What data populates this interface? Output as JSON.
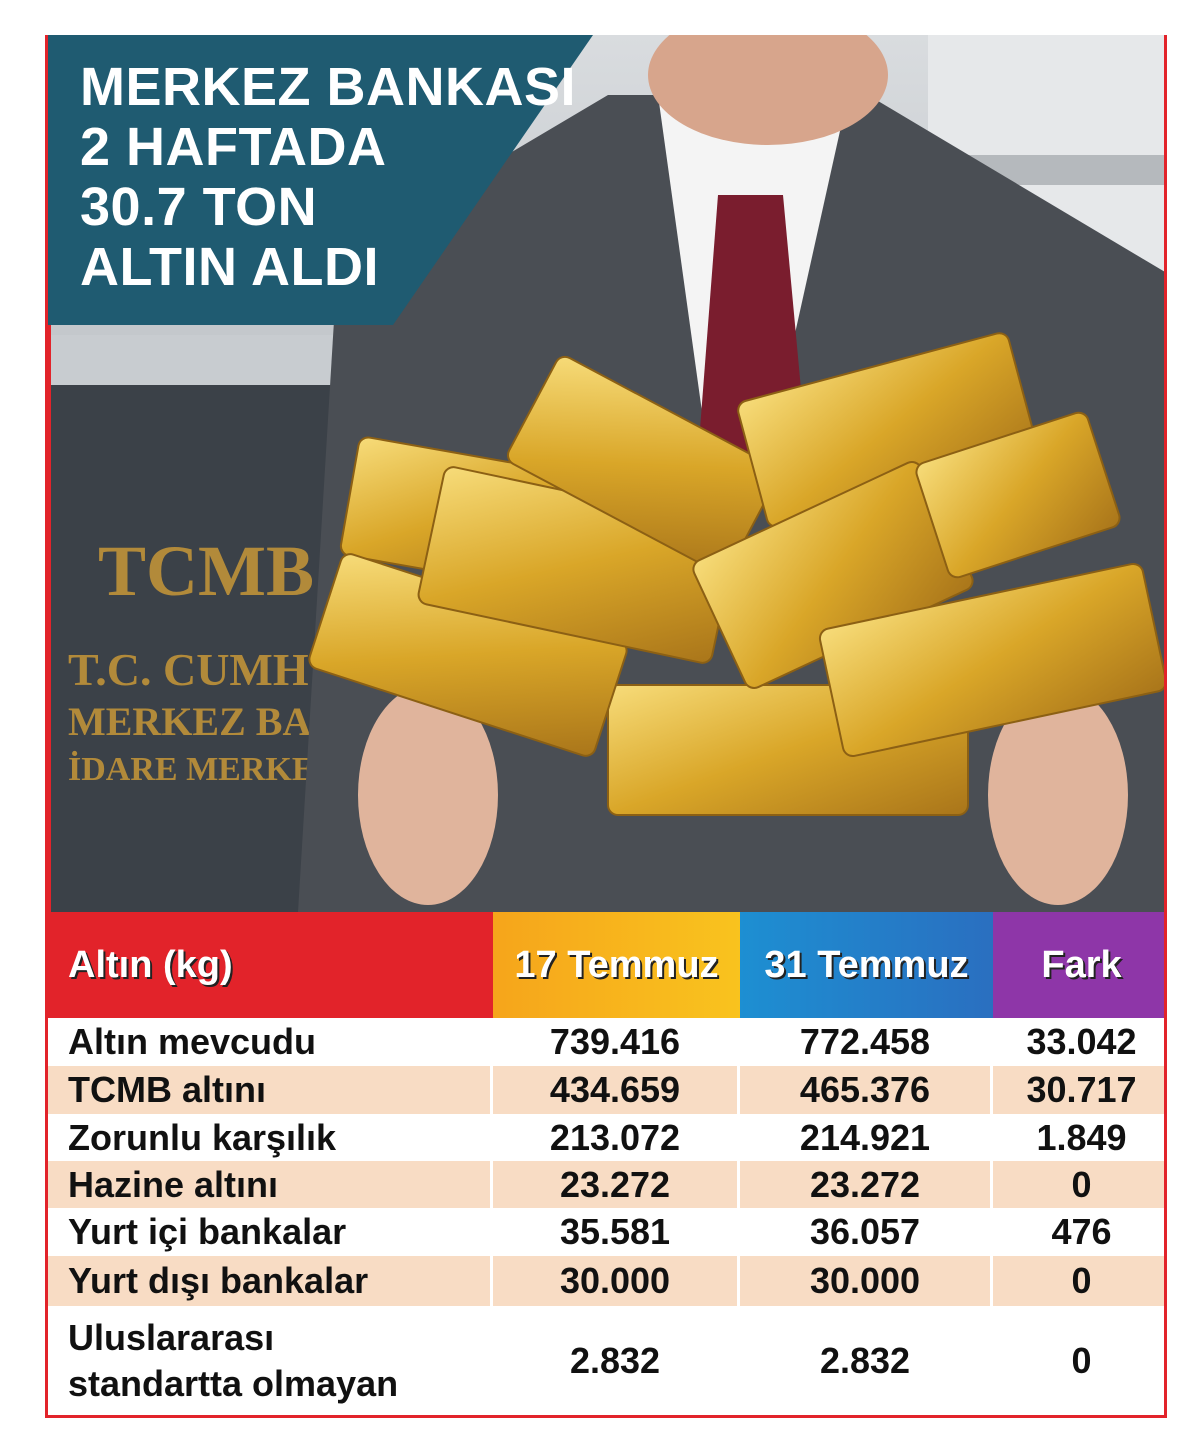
{
  "header": {
    "title": [
      "MERKEZ BANKASI",
      "2 HAFTADA",
      "30.7 TON",
      "ALTIN ALDI"
    ]
  },
  "image": {
    "sign": [
      "TCMB",
      "T.C. CUMHURİYET",
      "MERKEZ BANKASI",
      "İDARE MERKEZİ"
    ]
  },
  "table": {
    "columns": [
      "Altın (kg)",
      "17 Temmuz",
      "31 Temmuz",
      "Fark"
    ],
    "rows": [
      [
        "Altın mevcudu",
        "739.416",
        "772.458",
        "33.042"
      ],
      [
        "TCMB altını",
        "434.659",
        "465.376",
        "30.717"
      ],
      [
        "Zorunlu karşılık",
        "213.072",
        "214.921",
        "1.849"
      ],
      [
        "Hazine altını",
        "23.272",
        "23.272",
        "0"
      ],
      [
        "Yurt içi bankalar",
        "35.581",
        "36.057",
        "476"
      ],
      [
        "Yurt dışı bankalar",
        "30.000",
        "30.000",
        "0"
      ],
      [
        "Uluslararası standartta olmayan",
        "2.832",
        "2.832",
        "0"
      ]
    ]
  }
}
